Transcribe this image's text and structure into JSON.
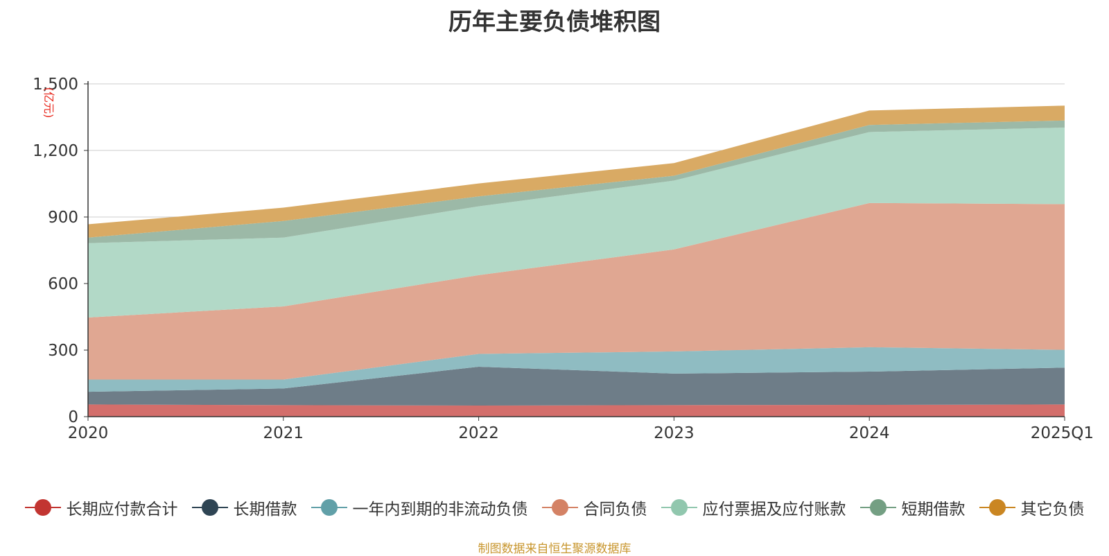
{
  "chart_data": {
    "type": "area",
    "stacked": true,
    "title": "历年主要负债堆积图",
    "unit_label": "(亿元)",
    "x": [
      "2020",
      "2021",
      "2022",
      "2023",
      "2024",
      "2025Q1"
    ],
    "ylim": [
      0,
      1500
    ],
    "yticks": [
      "0",
      "300",
      "600",
      "900",
      "1,200",
      "1,500"
    ],
    "grid": true,
    "legend_position": "bottom",
    "series": [
      {
        "name": "长期应付款合计",
        "color": "#c23531",
        "fill": "#d36e6b",
        "values": [
          55,
          52,
          50,
          52,
          53,
          55
        ]
      },
      {
        "name": "长期借款",
        "color": "#2f4554",
        "fill": "#6e7d88",
        "values": [
          57,
          75,
          175,
          142,
          150,
          166
        ]
      },
      {
        "name": "一年内到期的非流动负债",
        "color": "#61a0a8",
        "fill": "#8fbcc2",
        "values": [
          55,
          40,
          58,
          100,
          110,
          80
        ]
      },
      {
        "name": "合同负债",
        "color": "#d48265",
        "fill": "#e0a792",
        "values": [
          280,
          330,
          355,
          460,
          650,
          657
        ]
      },
      {
        "name": "应付票据及应付账款",
        "color": "#91c7ae",
        "fill": "#b2d9c7",
        "values": [
          335,
          310,
          310,
          310,
          320,
          345
        ]
      },
      {
        "name": "短期借款",
        "color": "#749f83",
        "fill": "#9cb9a7",
        "values": [
          25,
          75,
          45,
          22,
          32,
          32
        ]
      },
      {
        "name": "其它负债",
        "color": "#ca8622",
        "fill": "#d9aa64",
        "values": [
          60,
          60,
          58,
          57,
          65,
          67
        ]
      }
    ]
  },
  "footer": {
    "source": "制图数据来自恒生聚源数据库"
  }
}
